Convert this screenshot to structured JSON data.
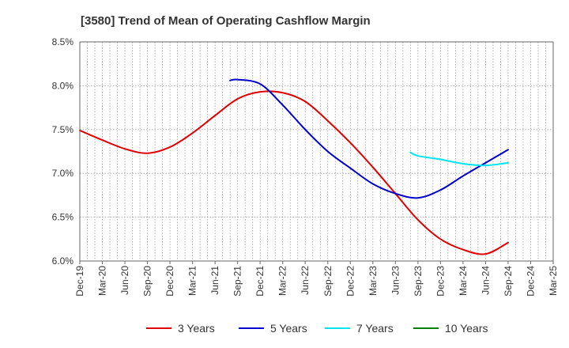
{
  "chart_data": {
    "type": "line",
    "title": "[3580]  Trend of Mean of Operating Cashflow Margin",
    "xlabel": "",
    "ylabel": "",
    "ylim": [
      6.0,
      8.5
    ],
    "y_ticks": [
      6.0,
      6.5,
      7.0,
      7.5,
      8.0,
      8.5
    ],
    "y_tick_labels": [
      "6.0%",
      "6.5%",
      "7.0%",
      "7.5%",
      "8.0%",
      "8.5%"
    ],
    "x_tick_labels": [
      "Dec-19",
      "Mar-20",
      "Jun-20",
      "Sep-20",
      "Dec-20",
      "Mar-21",
      "Jun-21",
      "Sep-21",
      "Dec-21",
      "Mar-22",
      "Jun-22",
      "Sep-22",
      "Dec-22",
      "Mar-23",
      "Jun-23",
      "Sep-23",
      "Dec-23",
      "Mar-24",
      "Jun-24",
      "Sep-24",
      "Dec-24",
      "Mar-25"
    ],
    "x_range_months": [
      0,
      63
    ],
    "x_unit": "months since Dec-19",
    "grid": true,
    "legend_position": "bottom",
    "series": [
      {
        "name": "3 Years",
        "color": "#e00000",
        "x": [
          0,
          3,
          6,
          9,
          12,
          15,
          18,
          21,
          24,
          27,
          30,
          33,
          36,
          39,
          42,
          45,
          48,
          51,
          54,
          57
        ],
        "values": [
          7.49,
          7.38,
          7.28,
          7.23,
          7.3,
          7.46,
          7.66,
          7.85,
          7.93,
          7.92,
          7.82,
          7.6,
          7.35,
          7.07,
          6.77,
          6.47,
          6.25,
          6.13,
          6.08,
          6.21
        ]
      },
      {
        "name": "5 Years",
        "color": "#0000cc",
        "x": [
          20,
          21,
          24,
          27,
          30,
          33,
          36,
          39,
          42,
          45,
          48,
          51,
          54,
          57
        ],
        "values": [
          8.06,
          8.07,
          8.02,
          7.78,
          7.5,
          7.25,
          7.06,
          6.88,
          6.77,
          6.72,
          6.81,
          6.97,
          7.12,
          7.27
        ]
      },
      {
        "name": "7 Years",
        "color": "#00e5ee",
        "x": [
          44,
          45,
          48,
          51,
          54,
          57
        ],
        "values": [
          7.24,
          7.2,
          7.16,
          7.11,
          7.09,
          7.12
        ]
      },
      {
        "name": "10 Years",
        "color": "#008000",
        "x": [],
        "values": []
      }
    ]
  }
}
